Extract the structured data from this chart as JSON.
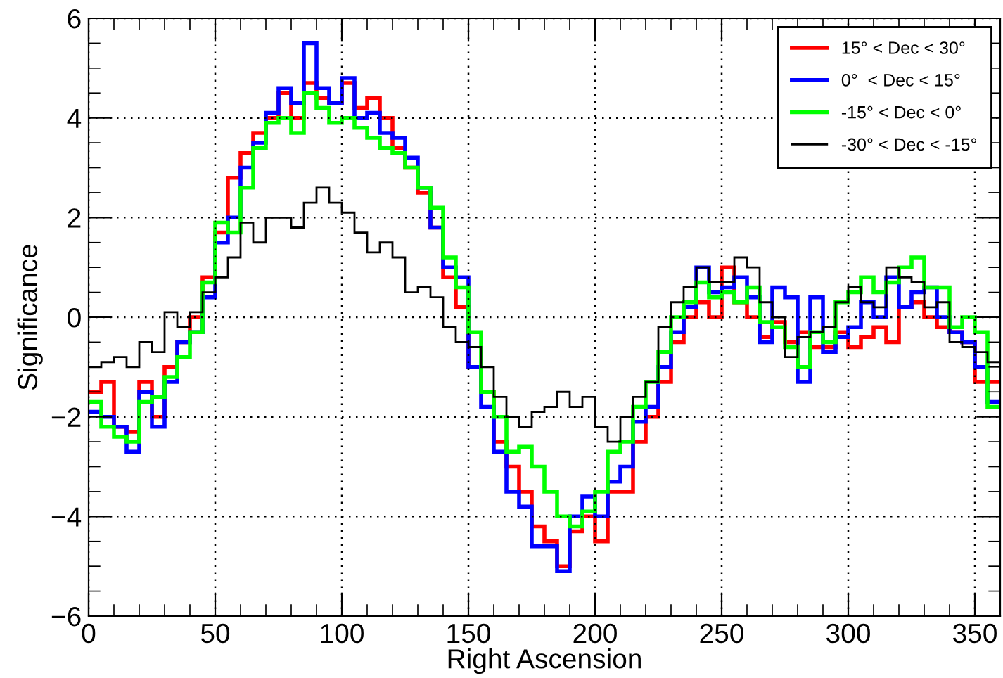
{
  "chart_data": {
    "type": "histogram",
    "xlabel": "Right Ascension",
    "ylabel": "Significance",
    "bins": [
      0,
      5,
      10,
      15,
      20,
      25,
      30,
      35,
      40,
      45,
      50,
      55,
      60,
      65,
      70,
      75,
      80,
      85,
      90,
      95,
      100,
      105,
      110,
      115,
      120,
      125,
      130,
      135,
      140,
      145,
      150,
      155,
      160,
      165,
      170,
      175,
      180,
      185,
      190,
      195,
      200,
      205,
      210,
      215,
      220,
      225,
      230,
      235,
      240,
      245,
      250,
      255,
      260,
      265,
      270,
      275,
      280,
      285,
      290,
      295,
      300,
      305,
      310,
      315,
      320,
      325,
      330,
      335,
      340,
      345,
      350,
      355,
      360
    ],
    "series": [
      {
        "name": "15° < Dec < 30°",
        "color": "#ff0000",
        "values": [
          -1.5,
          -1.3,
          -2.2,
          -2.3,
          -1.3,
          -2.0,
          -1.0,
          -0.5,
          0.0,
          0.8,
          1.7,
          2.8,
          3.3,
          3.7,
          4.0,
          4.5,
          4.0,
          4.7,
          4.4,
          4.3,
          4.7,
          4.2,
          4.4,
          4.0,
          3.4,
          3.0,
          2.5,
          1.8,
          0.8,
          0.2,
          -1.0,
          -1.5,
          -2.5,
          -3.0,
          -3.5,
          -4.2,
          -4.5,
          -5.0,
          -4.3,
          -4.0,
          -4.5,
          -3.5,
          -3.5,
          -2.5,
          -2.0,
          -1.3,
          -0.5,
          0.0,
          0.3,
          0.0,
          1.0,
          0.3,
          0.0,
          -0.4,
          -0.1,
          -0.5,
          -0.3,
          -0.6,
          -0.6,
          -0.3,
          -0.6,
          -0.4,
          -0.2,
          -0.5,
          0.2,
          0.3,
          0.0,
          -0.2,
          -0.3,
          -0.5,
          -1.3,
          -1.3
        ]
      },
      {
        "name": "0°  < Dec < 15°",
        "color": "#0000ff",
        "values": [
          -1.9,
          -2.0,
          -2.2,
          -2.7,
          -1.5,
          -2.2,
          -1.3,
          -0.5,
          -0.3,
          0.4,
          1.5,
          2.0,
          3.0,
          3.5,
          4.1,
          4.6,
          4.3,
          5.5,
          4.6,
          4.3,
          4.8,
          4.0,
          4.1,
          3.7,
          3.6,
          3.2,
          2.6,
          1.8,
          1.0,
          0.8,
          -1.0,
          -1.8,
          -2.7,
          -3.5,
          -3.8,
          -4.6,
          -4.6,
          -5.1,
          -4.0,
          -3.6,
          -4.0,
          -3.3,
          -3.0,
          -2.1,
          -1.8,
          -1.0,
          -0.3,
          0.2,
          1.0,
          0.5,
          0.6,
          0.8,
          0.4,
          -0.5,
          0.6,
          0.4,
          -1.3,
          0.4,
          -0.7,
          -0.4,
          -0.2,
          0.3,
          0.0,
          0.8,
          0.2,
          0.5,
          0.6,
          0.0,
          -0.3,
          -0.5,
          -1.0,
          -1.7
        ]
      },
      {
        "name": "-15° < Dec < 0°",
        "color": "#00ff00",
        "values": [
          -1.7,
          -2.2,
          -2.4,
          -2.5,
          -1.7,
          -1.6,
          -1.2,
          -0.8,
          -0.3,
          0.7,
          1.9,
          1.7,
          2.6,
          3.4,
          3.9,
          4.0,
          3.7,
          4.5,
          4.2,
          3.9,
          4.0,
          3.8,
          3.6,
          3.4,
          3.3,
          3.0,
          2.6,
          2.2,
          1.2,
          0.6,
          -0.3,
          -1.5,
          -2.0,
          -2.7,
          -2.6,
          -3.0,
          -3.5,
          -4.0,
          -4.2,
          -3.9,
          -3.5,
          -2.7,
          -2.5,
          -1.8,
          -1.3,
          -0.7,
          0.0,
          0.3,
          0.7,
          0.4,
          0.5,
          0.3,
          0.6,
          -0.1,
          -0.2,
          -0.6,
          -1.0,
          -0.3,
          -0.5,
          0.3,
          0.5,
          0.8,
          0.5,
          0.7,
          1.0,
          1.2,
          0.6,
          0.6,
          -0.2,
          0.0,
          -0.3,
          -1.8
        ]
      },
      {
        "name": "-30° < Dec < -15°",
        "color": "#000000",
        "values": [
          -1.0,
          -0.9,
          -0.8,
          -1.0,
          -0.5,
          -0.7,
          0.1,
          -0.2,
          0.1,
          0.5,
          0.8,
          1.2,
          1.9,
          1.5,
          2.0,
          2.0,
          1.8,
          2.3,
          2.6,
          2.3,
          2.1,
          1.7,
          1.3,
          1.5,
          1.2,
          0.5,
          0.6,
          0.4,
          -0.2,
          -0.5,
          -0.6,
          -1.0,
          -1.6,
          -2.0,
          -2.2,
          -1.9,
          -1.8,
          -1.5,
          -1.8,
          -1.6,
          -2.2,
          -2.5,
          -2.0,
          -1.6,
          -1.3,
          -0.2,
          0.3,
          0.6,
          1.0,
          0.7,
          0.7,
          1.2,
          1.0,
          0.3,
          0.0,
          -0.8,
          -0.4,
          -0.3,
          -0.2,
          0.3,
          0.6,
          0.3,
          0.2,
          1.0,
          0.8,
          0.7,
          0.2,
          0.3,
          -0.5,
          -0.6,
          -0.7,
          -0.9
        ]
      }
    ],
    "xlim": [
      0,
      360
    ],
    "xticks": [
      0,
      50,
      100,
      150,
      200,
      250,
      300,
      350
    ],
    "ylim": [
      -6,
      6
    ],
    "yticks": [
      {
        "value": -6,
        "label": "−6"
      },
      {
        "value": -4,
        "label": "−4"
      },
      {
        "value": -2,
        "label": "−2"
      },
      0,
      2,
      4,
      6
    ],
    "grid": true,
    "legend": "top right"
  }
}
